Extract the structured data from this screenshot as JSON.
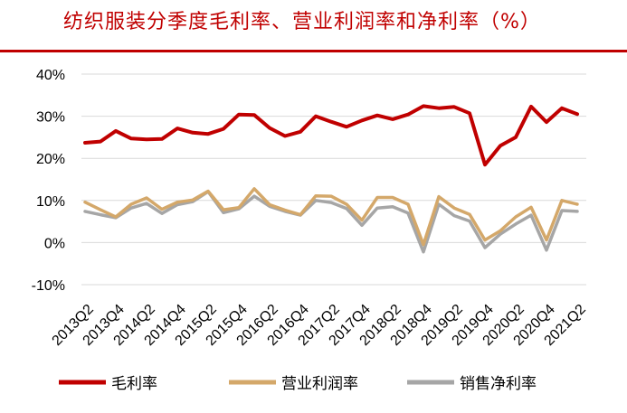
{
  "chart_data": {
    "type": "line",
    "title": "纺织服装分季度毛利率、营业利润率和净利率（%）",
    "xlabel": "",
    "ylabel": "",
    "ylim": [
      -10,
      40
    ],
    "yticks": [
      "-10%",
      "0%",
      "10%",
      "20%",
      "30%",
      "40%"
    ],
    "x_tick_labels": [
      "2013Q2",
      "2013Q4",
      "2014Q2",
      "2014Q4",
      "2015Q2",
      "2015Q4",
      "2016Q2",
      "2016Q4",
      "2017Q2",
      "2017Q4",
      "2018Q2",
      "2018Q4",
      "2019Q2",
      "2019Q4",
      "2020Q2",
      "2020Q4",
      "2021Q2"
    ],
    "x": [
      "2013Q2",
      "2013Q3",
      "2013Q4",
      "2014Q1",
      "2014Q2",
      "2014Q3",
      "2014Q4",
      "2015Q1",
      "2015Q2",
      "2015Q3",
      "2015Q4",
      "2016Q1",
      "2016Q2",
      "2016Q3",
      "2016Q4",
      "2017Q1",
      "2017Q2",
      "2017Q3",
      "2017Q4",
      "2018Q1",
      "2018Q2",
      "2018Q3",
      "2018Q4",
      "2019Q1",
      "2019Q2",
      "2019Q3",
      "2019Q4",
      "2020Q1",
      "2020Q2",
      "2020Q3",
      "2020Q4",
      "2021Q1",
      "2021Q2"
    ],
    "grid": true,
    "legend_position": "bottom",
    "series": [
      {
        "name": "毛利率",
        "color": "#c00000",
        "values": [
          23.7,
          24.0,
          26.5,
          24.7,
          24.5,
          24.6,
          27.1,
          26.1,
          25.8,
          27.0,
          30.4,
          30.3,
          27.2,
          25.3,
          26.3,
          30.0,
          28.7,
          27.5,
          29.0,
          30.2,
          29.3,
          30.4,
          32.4,
          31.9,
          32.2,
          30.7,
          18.5,
          23.0,
          25.0,
          32.3,
          28.6,
          31.9,
          30.5
        ]
      },
      {
        "name": "营业利润率",
        "color": "#d4a86a",
        "values": [
          9.6,
          7.8,
          6.1,
          9.1,
          10.6,
          7.9,
          9.6,
          10.1,
          12.2,
          7.8,
          8.3,
          12.8,
          9.0,
          7.7,
          6.6,
          11.1,
          11.0,
          9.1,
          5.3,
          10.7,
          10.7,
          9.1,
          -0.5,
          10.9,
          8.2,
          6.7,
          0.6,
          2.8,
          6.1,
          8.4,
          0.6,
          10.0,
          9.1
        ]
      },
      {
        "name": "销售净利率",
        "color": "#a6a6a6",
        "values": [
          7.4,
          6.6,
          5.9,
          8.2,
          9.3,
          6.9,
          9.0,
          9.7,
          12.1,
          7.1,
          8.0,
          11.0,
          8.6,
          7.4,
          6.5,
          10.0,
          9.5,
          8.1,
          4.1,
          8.2,
          8.5,
          7.0,
          -2.2,
          9.1,
          6.4,
          5.1,
          -1.2,
          2.0,
          4.4,
          6.5,
          -1.8,
          7.6,
          7.4
        ]
      }
    ]
  }
}
